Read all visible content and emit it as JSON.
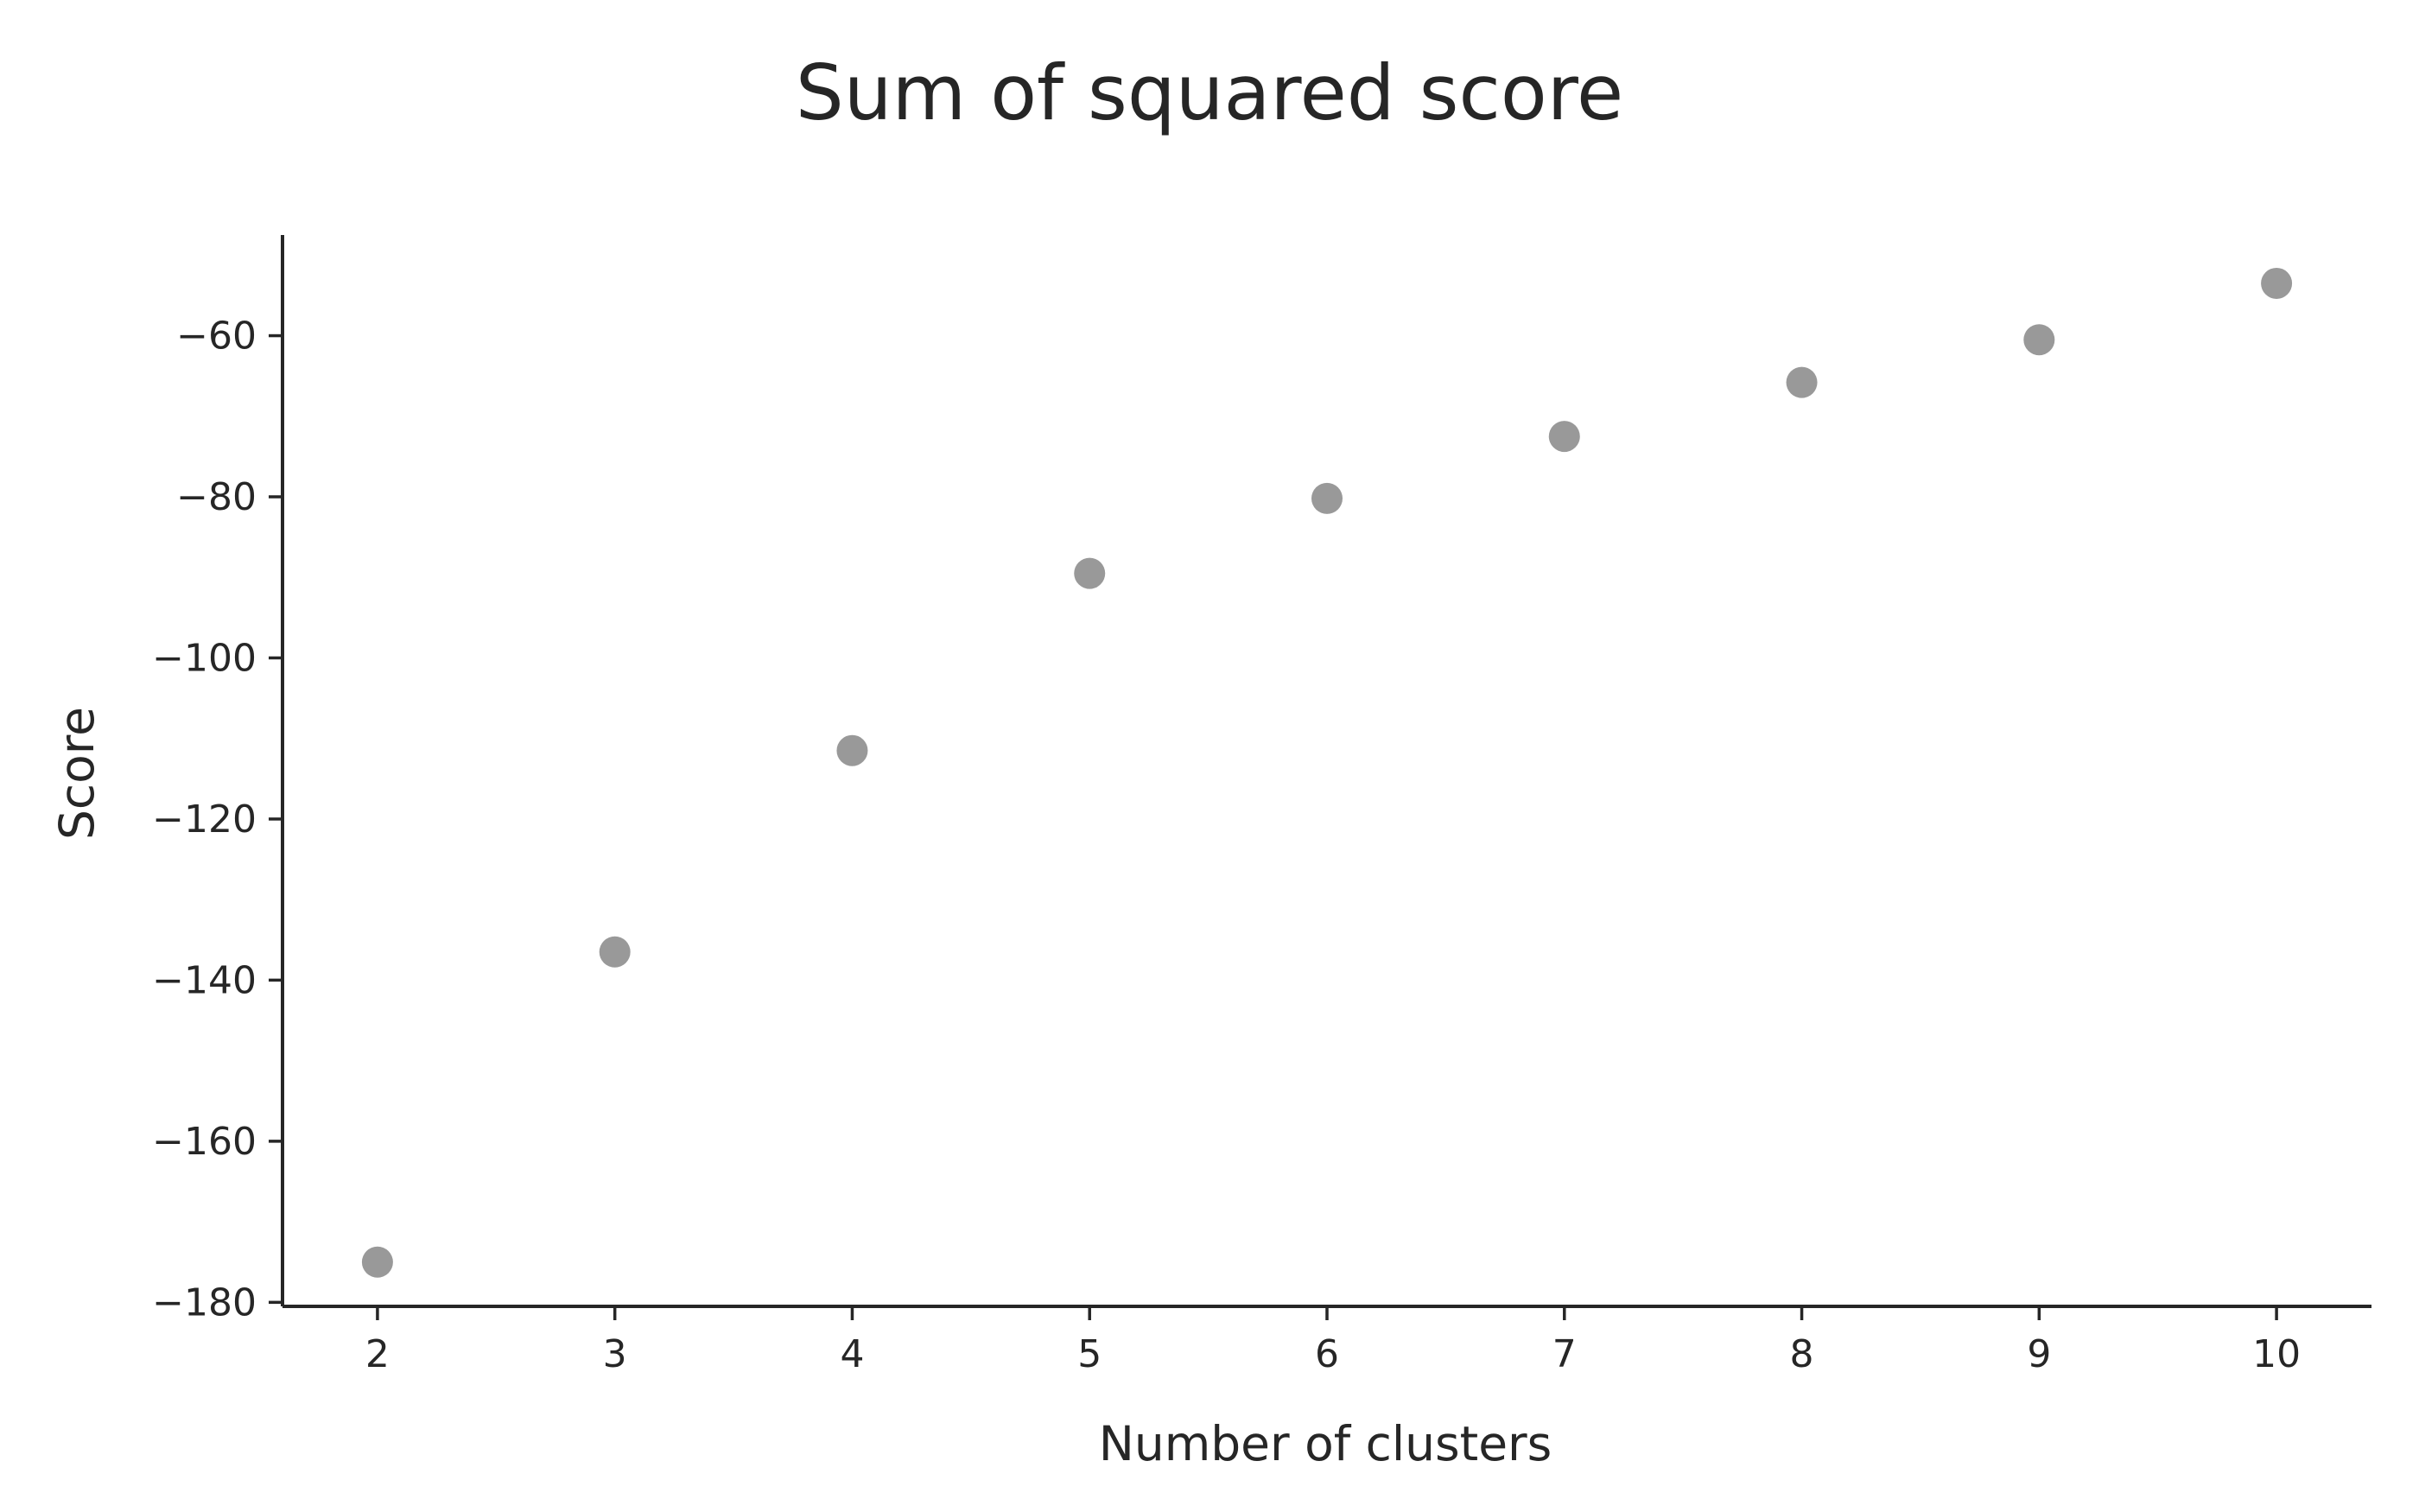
{
  "chart_data": {
    "type": "scatter",
    "title": "Sum of squared score",
    "xlabel": "Number of clusters",
    "ylabel": "Score",
    "x": [
      2,
      3,
      4,
      5,
      6,
      7,
      8,
      9,
      10
    ],
    "y": [
      -175.0,
      -136.5,
      -111.5,
      -89.5,
      -80.2,
      -72.5,
      -65.8,
      -60.5,
      -53.5
    ],
    "xlim": [
      1.6,
      10.4
    ],
    "ylim": [
      -180.5,
      -47.5
    ],
    "xticks": [
      2,
      3,
      4,
      5,
      6,
      7,
      8,
      9,
      10
    ],
    "yticks": [
      -180,
      -160,
      -140,
      -120,
      -100,
      -80,
      -60
    ],
    "ytick_labels": [
      "−180",
      "−160",
      "−140",
      "−120",
      "−100",
      "−80",
      "−60"
    ],
    "grid": false,
    "legend": "none",
    "colors": {
      "marker": "#999999",
      "axis": "#262626",
      "text": "#262626",
      "background": "#ffffff"
    }
  }
}
